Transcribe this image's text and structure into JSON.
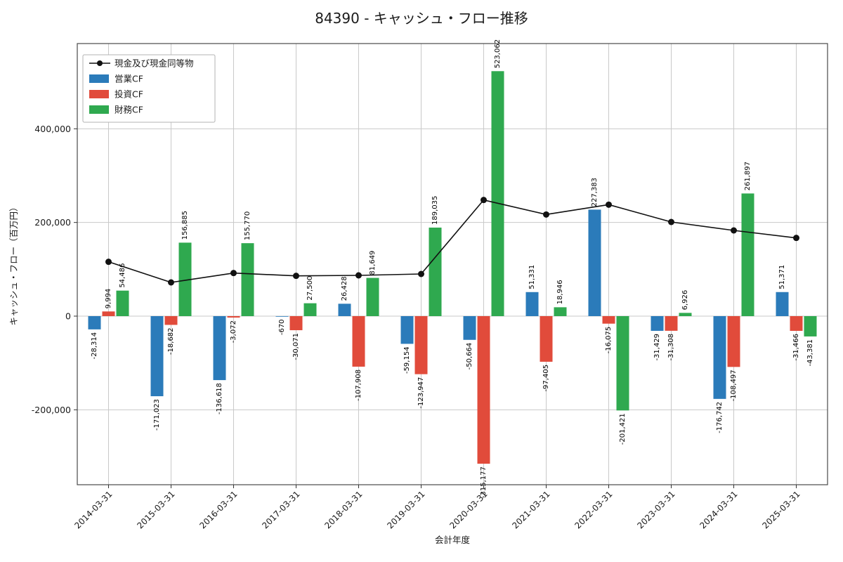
{
  "title": "84390 - キャッシュ・フロー推移",
  "chart_data": {
    "type": "bar",
    "title": "84390 - キャッシュ・フロー推移",
    "xlabel": "会計年度",
    "ylabel": "キャッシュ・フロー（百万円）",
    "categories": [
      "2014-03-31",
      "2015-03-31",
      "2016-03-31",
      "2017-03-31",
      "2018-03-31",
      "2019-03-31",
      "2020-03-31",
      "2021-03-31",
      "2022-03-31",
      "2023-03-31",
      "2024-03-31",
      "2025-03-31"
    ],
    "series": [
      {
        "name": "現金及び現金同等物",
        "type": "line",
        "color": "#111111",
        "values": [
          116000,
          72000,
          92000,
          86000,
          87000,
          90000,
          248000,
          217000,
          238000,
          201000,
          183000,
          167000
        ]
      },
      {
        "name": "営業CF",
        "type": "bar",
        "color": "#2b7bba",
        "values": [
          -28314,
          -171023,
          -136618,
          -670,
          26428,
          -59154,
          -50664,
          51331,
          227383,
          -31429,
          -176742,
          51371
        ]
      },
      {
        "name": "投資CF",
        "type": "bar",
        "color": "#e14b3b",
        "values": [
          9994,
          -18682,
          -3072,
          -30071,
          -107908,
          -123947,
          -315177,
          -97405,
          -16075,
          -31308,
          -108497,
          -31466
        ]
      },
      {
        "name": "財務CF",
        "type": "bar",
        "color": "#2fa94f",
        "values": [
          54486,
          156885,
          155770,
          27500,
          81649,
          189035,
          523062,
          18946,
          -201421,
          6926,
          261897,
          -43381
        ]
      }
    ],
    "ylim": [
      -360000,
      582000
    ],
    "yticks": [
      -200000,
      0,
      200000,
      400000
    ],
    "grid": true,
    "legend_position": "upper-left",
    "bar_value_labels": true,
    "label_rotation": 90,
    "xtick_rotation": 45,
    "grid_color": "#c9c9c9",
    "border_color": "#4a4a4a"
  }
}
